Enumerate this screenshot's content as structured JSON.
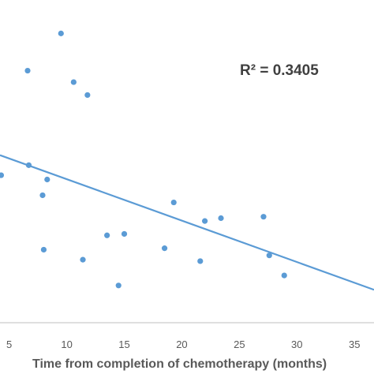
{
  "chart_data": {
    "type": "scatter",
    "title": "",
    "xlabel": "Time from completion of chemotherapy (months)",
    "ylabel": "",
    "xlim": [
      4.2,
      36.7
    ],
    "ylim": [
      0,
      100
    ],
    "grid": false,
    "x_ticks": [
      5,
      10,
      15,
      20,
      25,
      30,
      35
    ],
    "annotation": "R² = 0.3405",
    "points": [
      {
        "x": 4.3,
        "y": 51.5
      },
      {
        "x": 6.6,
        "y": 88
      },
      {
        "x": 6.7,
        "y": 55
      },
      {
        "x": 7.9,
        "y": 44.5
      },
      {
        "x": 8.0,
        "y": 25.5
      },
      {
        "x": 8.3,
        "y": 50
      },
      {
        "x": 9.5,
        "y": 101
      },
      {
        "x": 10.6,
        "y": 84
      },
      {
        "x": 11.4,
        "y": 22
      },
      {
        "x": 11.8,
        "y": 79.5
      },
      {
        "x": 13.5,
        "y": 30.5
      },
      {
        "x": 14.5,
        "y": 13
      },
      {
        "x": 15.0,
        "y": 31
      },
      {
        "x": 18.5,
        "y": 26
      },
      {
        "x": 19.3,
        "y": 42
      },
      {
        "x": 21.6,
        "y": 21.5
      },
      {
        "x": 22.0,
        "y": 35.5
      },
      {
        "x": 23.4,
        "y": 36.5
      },
      {
        "x": 27.1,
        "y": 37
      },
      {
        "x": 27.6,
        "y": 23.5
      },
      {
        "x": 28.9,
        "y": 16.5
      }
    ],
    "trendline": {
      "x": [
        4.2,
        36.7
      ],
      "y": [
        58.5,
        11.5
      ]
    },
    "colors": {
      "points": "#5b9bd5",
      "trendline": "#5b9bd5",
      "axis": "#bfbfbf",
      "text": "#595959"
    }
  }
}
